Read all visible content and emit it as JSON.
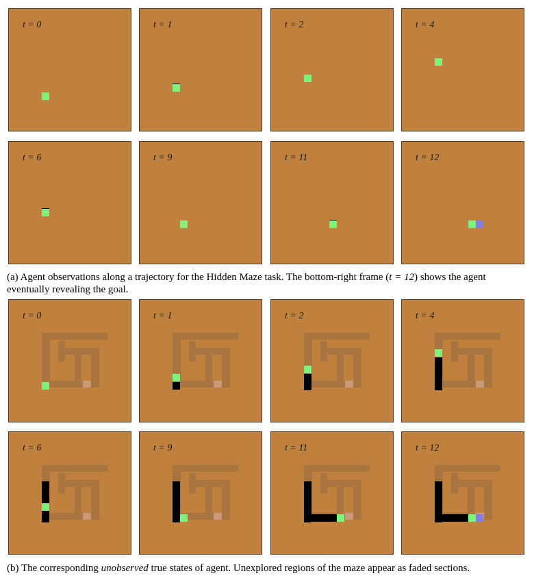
{
  "section_a": {
    "frames": [
      {
        "label": "t = 0"
      },
      {
        "label": "t = 1"
      },
      {
        "label": "t = 2"
      },
      {
        "label": "t = 4"
      },
      {
        "label": "t = 6"
      },
      {
        "label": "t = 9"
      },
      {
        "label": "t = 11"
      },
      {
        "label": "t = 12"
      }
    ],
    "caption_before": "(a) Agent observations along a trajectory for the Hidden Maze task. The bottom-right frame (",
    "caption_math": "t = 12",
    "caption_after": ") shows the agent eventually revealing the goal."
  },
  "section_b": {
    "frames": [
      {
        "label": "t = 0"
      },
      {
        "label": "t = 1"
      },
      {
        "label": "t = 2"
      },
      {
        "label": "t = 4"
      },
      {
        "label": "t = 6"
      },
      {
        "label": "t = 9"
      },
      {
        "label": "t = 11"
      },
      {
        "label": "t = 12"
      }
    ],
    "caption_before": "(b) The corresponding ",
    "caption_em": "unobserved",
    "caption_after": " true states of agent. Unexplored regions of the maze appear as faded sections."
  },
  "colors": {
    "background": "#c0813f",
    "agent": "#7df27d",
    "goal": "#8a7bea",
    "trail": "#000000",
    "maze_faded": "#a8743f"
  }
}
